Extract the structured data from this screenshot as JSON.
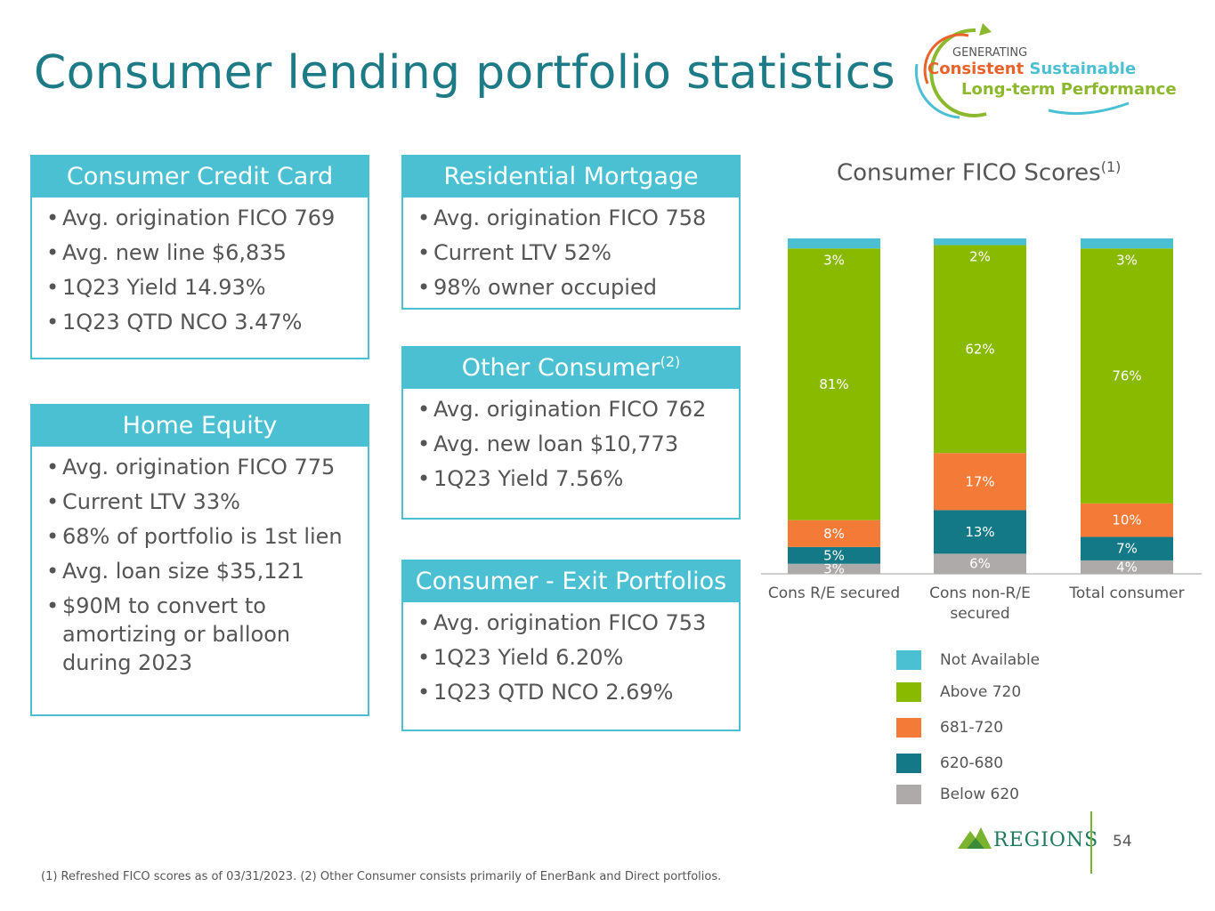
{
  "page": {
    "title": "Consumer lending portfolio statistics",
    "footnote": "(1) Refreshed FICO scores as of 03/31/2023. (2) Other Consumer consists primarily of EnerBank and Direct portfolios.",
    "page_number": "54"
  },
  "logo": {
    "generating": "GENERATING",
    "consistent": "Consistent",
    "sustainable": "Sustainable",
    "long_term": "Long-term Performance"
  },
  "brand": {
    "name": "REGIONS"
  },
  "boxes": {
    "credit_card": {
      "title": "Consumer Credit Card",
      "items": [
        "Avg. origination FICO 769",
        "Avg. new line $6,835",
        "1Q23 Yield 14.93%",
        "1Q23 QTD NCO 3.47%"
      ]
    },
    "home_equity": {
      "title": "Home Equity",
      "items": [
        "Avg. origination FICO 775",
        "Current LTV 33%",
        "68% of portfolio is 1st lien",
        "Avg. loan size $35,121",
        "$90M to convert to amortizing or balloon during 2023"
      ]
    },
    "residential_mortgage": {
      "title": "Residential Mortgage",
      "items": [
        "Avg. origination FICO 758",
        "Current LTV 52%",
        "98% owner occupied"
      ]
    },
    "other_consumer": {
      "title": "Other Consumer",
      "title_sup": "(2)",
      "items": [
        "Avg. origination FICO 762",
        "Avg. new loan $10,773",
        "1Q23 Yield 7.56%"
      ]
    },
    "exit_portfolios": {
      "title": "Consumer - Exit Portfolios",
      "items": [
        "Avg. origination FICO 753",
        "1Q23 Yield 6.20%",
        "1Q23 QTD NCO 2.69%"
      ]
    }
  },
  "chart_data": {
    "type": "bar",
    "stacked": true,
    "title": "Consumer FICO Scores",
    "title_sup": "(1)",
    "categories": [
      "Cons R/E secured",
      "Cons non-R/E secured",
      "Total consumer"
    ],
    "series": [
      {
        "name": "Below 620",
        "values": [
          3,
          6,
          4
        ],
        "color": "#aeaaaa"
      },
      {
        "name": "620-680",
        "values": [
          5,
          13,
          7
        ],
        "color": "#137987"
      },
      {
        "name": "681-720",
        "values": [
          8,
          17,
          10
        ],
        "color": "#f47a37"
      },
      {
        "name": "Above 720",
        "values": [
          81,
          62,
          76
        ],
        "color": "#8aba00"
      },
      {
        "name": "Not Available",
        "values": [
          3,
          2,
          3
        ],
        "color": "#4ac0d2"
      }
    ],
    "legend_order": [
      "Not Available",
      "Above 720",
      "681-720",
      "620-680",
      "Below 620"
    ],
    "legend_position": "bottom",
    "grid": false
  }
}
